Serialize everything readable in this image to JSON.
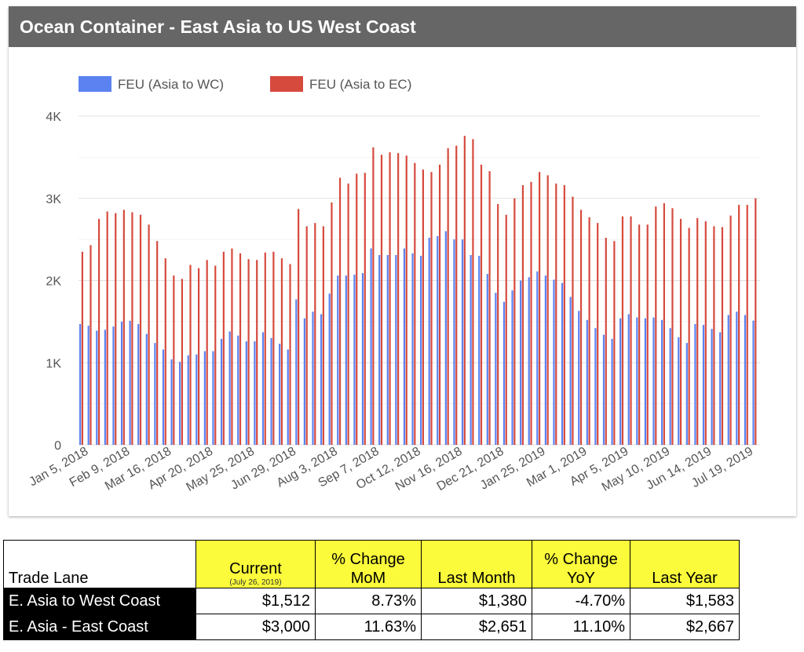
{
  "header": {
    "title": "Ocean Container - East Asia to US West Coast"
  },
  "colors": {
    "wc": "#5b82f0",
    "ec": "#d64a3e",
    "header_bg": "#666666",
    "table_highlight": "#fbfb3c"
  },
  "chart_data": {
    "type": "bar",
    "series": [
      {
        "name": "FEU (Asia to WC)",
        "values": [
          1470,
          1450,
          1390,
          1400,
          1440,
          1500,
          1510,
          1470,
          1350,
          1240,
          1160,
          1040,
          1010,
          1090,
          1100,
          1140,
          1140,
          1290,
          1380,
          1330,
          1260,
          1260,
          1370,
          1300,
          1230,
          1160,
          1770,
          1540,
          1620,
          1590,
          1840,
          2060,
          2060,
          2070,
          2090,
          2390,
          2310,
          2310,
          2310,
          2390,
          2330,
          2300,
          2520,
          2540,
          2600,
          2500,
          2500,
          2310,
          2300,
          2080,
          1850,
          1740,
          1880,
          2000,
          2040,
          2110,
          2060,
          2010,
          1970,
          1800,
          1630,
          1520,
          1420,
          1340,
          1290,
          1540,
          1590,
          1550,
          1540,
          1550,
          1520,
          1420,
          1310,
          1240,
          1470,
          1460,
          1410,
          1370,
          1580,
          1620,
          1580,
          1512
        ]
      },
      {
        "name": "FEU (Asia to EC)",
        "values": [
          2350,
          2430,
          2750,
          2840,
          2820,
          2860,
          2830,
          2800,
          2680,
          2480,
          2270,
          2060,
          2020,
          2190,
          2150,
          2250,
          2180,
          2350,
          2390,
          2330,
          2260,
          2250,
          2340,
          2350,
          2270,
          2200,
          2870,
          2660,
          2700,
          2660,
          2950,
          3250,
          3180,
          3300,
          3310,
          3620,
          3530,
          3560,
          3550,
          3520,
          3430,
          3350,
          3320,
          3410,
          3610,
          3640,
          3760,
          3720,
          3410,
          3330,
          2930,
          2800,
          3000,
          3160,
          3200,
          3320,
          3280,
          3180,
          3160,
          3020,
          2860,
          2770,
          2700,
          2520,
          2480,
          2780,
          2780,
          2680,
          2680,
          2900,
          2940,
          2880,
          2750,
          2640,
          2760,
          2720,
          2660,
          2650,
          2790,
          2920,
          2920,
          3000
        ]
      }
    ],
    "x_tick_labels": [
      "Jan 5, 2018",
      "Feb 9, 2018",
      "Mar 16, 2018",
      "Apr 20, 2018",
      "May 25, 2018",
      "Jun 29, 2018",
      "Aug 3, 2018",
      "Sep 7, 2018",
      "Oct 12, 2018",
      "Nov 16, 2018",
      "Dec 21, 2018",
      "Jan 25, 2019",
      "Mar 1, 2019",
      "Apr 5, 2019",
      "May 10, 2019",
      "Jun 14, 2019",
      "Jul 19, 2019"
    ],
    "y_ticks": [
      0,
      1000,
      2000,
      3000,
      4000
    ],
    "y_tick_labels": [
      "0",
      "1K",
      "2K",
      "3K",
      "4K"
    ],
    "ylim": [
      0,
      4000
    ],
    "grid": true,
    "legend_position": "top-left"
  },
  "table": {
    "headers": {
      "lane": "Trade Lane",
      "current": "Current",
      "current_date": "(July 26, 2019)",
      "mom_line1": "% Change",
      "mom_line2": "MoM",
      "last_month": "Last Month",
      "yoy_line1": "% Change",
      "yoy_line2": "YoY",
      "last_year": "Last Year"
    },
    "rows": [
      {
        "lane": "E. Asia to West Coast",
        "current": "$1,512",
        "mom": "8.73%",
        "last_month": "$1,380",
        "yoy": "-4.70%",
        "last_year": "$1,583"
      },
      {
        "lane": "E. Asia - East Coast",
        "current": "$3,000",
        "mom": "11.63%",
        "last_month": "$2,651",
        "yoy": "11.10%",
        "last_year": "$2,667"
      }
    ]
  }
}
